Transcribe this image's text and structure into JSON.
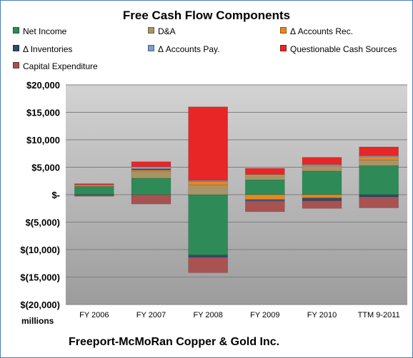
{
  "title": "Free Cash Flow Components",
  "units_label": "millions",
  "company_label": "Freeport-McMoRan Copper & Gold Inc.",
  "legend": [
    {
      "label": "Net Income",
      "color": "#2e8b57"
    },
    {
      "label": "D&A",
      "color": "#a89466"
    },
    {
      "label": "Δ Accounts Rec.",
      "color": "#e8861e"
    },
    {
      "label": "Δ Inventories",
      "color": "#2f4a6e"
    },
    {
      "label": "Δ Accounts Pay.",
      "color": "#7a9cc8"
    },
    {
      "label": "Questionable Cash Sources",
      "color": "#e82626"
    },
    {
      "label": "Capital Expenditure",
      "color": "#a85252"
    }
  ],
  "chart_data": {
    "type": "bar",
    "stacked": true,
    "title": "Free Cash Flow Components",
    "xlabel": "",
    "ylabel": "",
    "units": "millions",
    "ylim": [
      -20000,
      20000
    ],
    "yticks": [
      20000,
      15000,
      10000,
      5000,
      0,
      -5000,
      -10000,
      -15000,
      -20000
    ],
    "ytick_labels": [
      "$20,000",
      "$15,000",
      "$10,000",
      "$5,000",
      "$-",
      "$(5,000)",
      "$(10,000)",
      "$(15,000)",
      "$(20,000)"
    ],
    "grid": true,
    "legend_position": "top",
    "categories": [
      "FY 2006",
      "FY 2007",
      "FY 2008",
      "FY 2009",
      "FY 2010",
      "TTM 9-2011"
    ],
    "series": [
      {
        "name": "Net Income",
        "values": [
          1500,
          3000,
          -11000,
          2700,
          4300,
          5300
        ]
      },
      {
        "name": "D&A",
        "values": [
          300,
          1200,
          1800,
          1000,
          1000,
          1000
        ]
      },
      {
        "name": "Δ Accounts Rec.",
        "values": [
          0,
          300,
          600,
          -900,
          -600,
          600
        ]
      },
      {
        "name": "Δ Inventories",
        "values": [
          -100,
          200,
          -400,
          -200,
          -500,
          -400
        ]
      },
      {
        "name": "Δ Accounts Pay.",
        "values": [
          0,
          400,
          200,
          -100,
          200,
          200
        ]
      },
      {
        "name": "Questionable Cash Sources",
        "values": [
          200,
          900,
          13400,
          1100,
          1300,
          1600
        ]
      },
      {
        "name": "Capital Expenditure",
        "values": [
          -200,
          -1700,
          -2800,
          -1900,
          -1400,
          -2000
        ]
      }
    ]
  }
}
